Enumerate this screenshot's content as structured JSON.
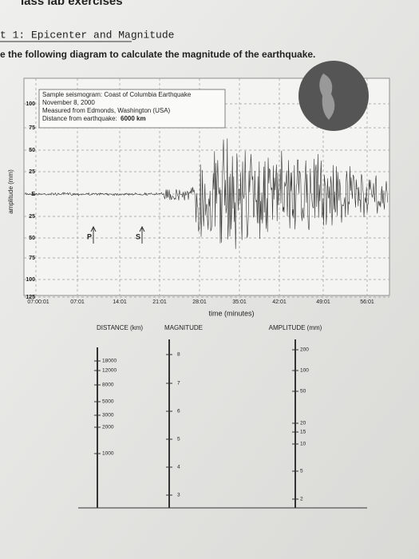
{
  "header": {
    "course": "lass lab exercises",
    "section": "t 1: Epicenter and Magnitude",
    "instruction": "e the following diagram to calculate the magnitude of the earthquake."
  },
  "seismogram": {
    "info": [
      "Sample seismogram: Coast of Columbia Earthquake",
      "November 8, 2000",
      "Measured from Edmonds, Washington (USA)"
    ],
    "distance_label": "Distance from earthquake:",
    "distance_value": "6000 km",
    "y_label": "amplitude (mm)",
    "y_ticks": [
      "100",
      "75",
      "50",
      "25",
      "E",
      "25",
      "50",
      "75",
      "100",
      "125"
    ],
    "x_ticks": [
      "07:00:01",
      "07:01",
      "14:01",
      "21:01",
      "28:01",
      "35:01",
      "42:01",
      "49:01",
      "56:01"
    ],
    "x_label": "time (minutes)",
    "p_marker": "P",
    "s_marker": "S"
  },
  "nomogram": {
    "distance": {
      "title": "DISTANCE (km)",
      "ticks": [
        "18000",
        "12000",
        "8000",
        "5000",
        "3000",
        "2000",
        "1000"
      ]
    },
    "magnitude": {
      "title": "MAGNITUDE",
      "ticks": [
        "8",
        "7",
        "6",
        "5",
        "4",
        "3"
      ]
    },
    "amplitude": {
      "title": "AMPLITUDE (mm)",
      "ticks": [
        "200",
        "100",
        "50",
        "20",
        "15",
        "10",
        "5",
        "2"
      ]
    }
  }
}
